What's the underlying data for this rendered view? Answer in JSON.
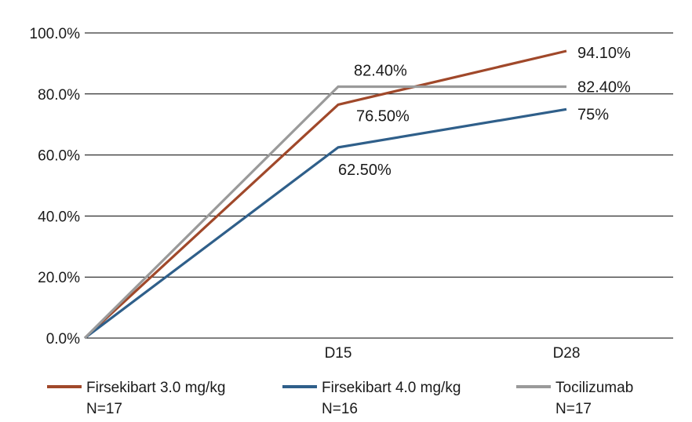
{
  "chart_data": {
    "type": "line",
    "categories": [
      "",
      "D15",
      "D28"
    ],
    "ylim": [
      0,
      100
    ],
    "y_ticks": [
      "0.0%",
      "20.0%",
      "40.0%",
      "60.0%",
      "80.0%",
      "100.0%"
    ],
    "grid": true,
    "legend_position": "bottom",
    "series": [
      {
        "name": "Firsekibart 3.0 mg/kg",
        "name_line2": "N=17",
        "color": "#a0482a",
        "values": [
          0,
          76.5,
          94.1
        ],
        "labels": [
          "",
          "76.50%",
          "94.10%"
        ]
      },
      {
        "name": "Firsekibart 4.0 mg/kg",
        "name_line2": "N=16",
        "color": "#2f5f8a",
        "values": [
          0,
          62.5,
          75
        ],
        "labels": [
          "",
          "62.50%",
          "75%"
        ]
      },
      {
        "name": "Tocilizumab",
        "name_line2": "N=17",
        "color": "#9a9a9a",
        "values": [
          0,
          82.4,
          82.4
        ],
        "labels": [
          "",
          "82.40%",
          "82.40%"
        ]
      }
    ]
  }
}
